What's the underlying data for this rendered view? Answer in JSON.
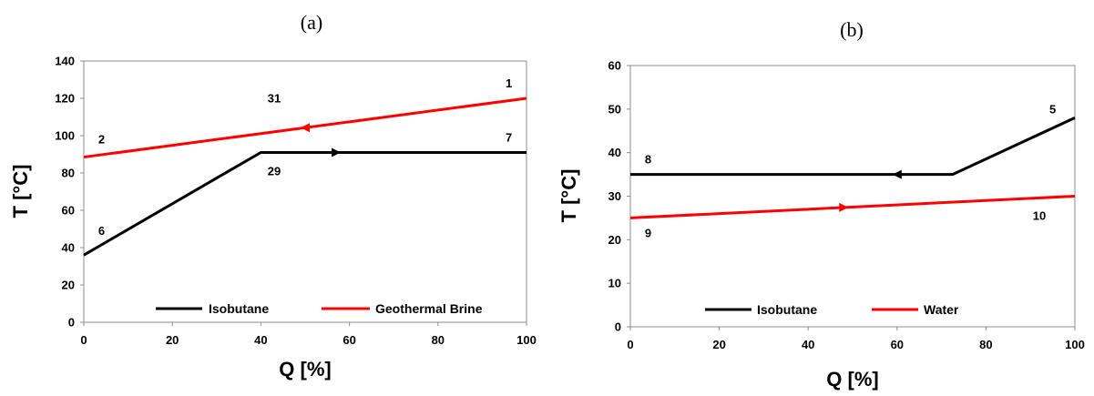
{
  "chart_data": [
    {
      "type": "line",
      "panel_label": "(a)",
      "xlabel": "Q [%]",
      "ylabel": "T [°C]",
      "xlim": [
        0,
        100
      ],
      "ylim": [
        0,
        140
      ],
      "x_ticks": [
        0,
        20,
        40,
        60,
        80,
        100
      ],
      "y_ticks": [
        0,
        20,
        40,
        60,
        80,
        100,
        120,
        140
      ],
      "grid": false,
      "legend_placement": "bottom-right",
      "series": [
        {
          "name": "Isobutane",
          "color": "#000000",
          "x": [
            0,
            40,
            100
          ],
          "y": [
            36,
            91,
            91
          ],
          "arrow": {
            "x": 57,
            "direction": "right"
          }
        },
        {
          "name": "Geothermal Brine",
          "color": "#ff0000",
          "x": [
            0,
            100
          ],
          "y": [
            88.5,
            120
          ],
          "arrow": {
            "x": 50,
            "direction": "left"
          }
        }
      ],
      "annotations": [
        {
          "text": "1",
          "x": 96,
          "y": 128
        },
        {
          "text": "31",
          "x": 43,
          "y": 120
        },
        {
          "text": "2",
          "x": 4,
          "y": 98
        },
        {
          "text": "7",
          "x": 96,
          "y": 99
        },
        {
          "text": "29",
          "x": 43,
          "y": 81
        },
        {
          "text": "6",
          "x": 4,
          "y": 49
        }
      ]
    },
    {
      "type": "line",
      "panel_label": "(b)",
      "xlabel": "Q [%]",
      "ylabel": "T [°C]",
      "xlim": [
        0,
        100
      ],
      "ylim": [
        0,
        60
      ],
      "x_ticks": [
        0,
        20,
        40,
        60,
        80,
        100
      ],
      "y_ticks": [
        0,
        10,
        20,
        30,
        40,
        50,
        60
      ],
      "grid": false,
      "legend_placement": "bottom-center",
      "series": [
        {
          "name": "Isobutane",
          "color": "#000000",
          "x": [
            0,
            72.5,
            100
          ],
          "y": [
            35,
            35,
            48
          ],
          "arrow": {
            "x": 60,
            "direction": "left"
          }
        },
        {
          "name": "Water",
          "color": "#ff0000",
          "x": [
            0,
            100
          ],
          "y": [
            25,
            30
          ],
          "arrow": {
            "x": 48,
            "direction": "right"
          }
        }
      ],
      "annotations": [
        {
          "text": "5",
          "x": 95,
          "y": 50
        },
        {
          "text": "8",
          "x": 4,
          "y": 38.5
        },
        {
          "text": "10",
          "x": 92,
          "y": 25.5
        },
        {
          "text": "9",
          "x": 4,
          "y": 21.5
        }
      ]
    }
  ]
}
